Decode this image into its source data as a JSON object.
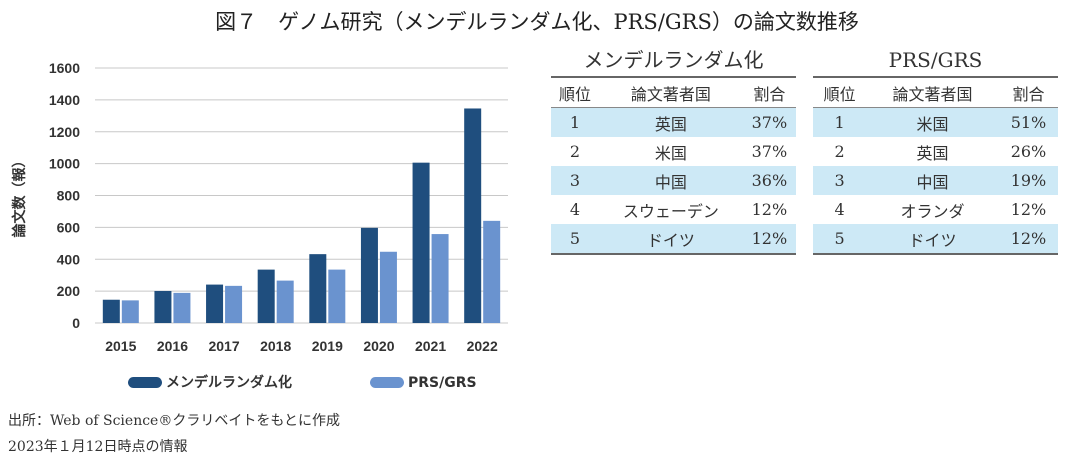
{
  "title": "図７　ゲノム研究（メンデルランダム化、PRS/GRS）の論文数推移",
  "chart_data": {
    "type": "bar",
    "categories": [
      "2015",
      "2016",
      "2017",
      "2018",
      "2019",
      "2020",
      "2021",
      "2022"
    ],
    "series": [
      {
        "name": "メンデルランダム化",
        "color": "#1f4e7e",
        "values": [
          146,
          201,
          241,
          335,
          432,
          597,
          1006,
          1346
        ]
      },
      {
        "name": "PRS/GRS",
        "color": "#6a93cf",
        "values": [
          142,
          189,
          233,
          266,
          335,
          447,
          558,
          641
        ]
      }
    ],
    "ylabel": "論文数（報）",
    "ylim": [
      0,
      1600
    ],
    "yticks": [
      "0",
      "200",
      "400",
      "600",
      "800",
      "1000",
      "1200",
      "1400",
      "1600"
    ],
    "grid": true,
    "legend": "bottom"
  },
  "tables": [
    {
      "title": "メンデルランダム化",
      "headers": [
        "順位",
        "論文著者国",
        "割合"
      ],
      "rows": [
        [
          "1",
          "英国",
          "37%"
        ],
        [
          "2",
          "米国",
          "37%"
        ],
        [
          "3",
          "中国",
          "36%"
        ],
        [
          "4",
          "スウェーデン",
          "12%"
        ],
        [
          "5",
          "ドイツ",
          "12%"
        ]
      ]
    },
    {
      "title": "PRS/GRS",
      "headers": [
        "順位",
        "論文著者国",
        "割合"
      ],
      "rows": [
        [
          "1",
          "米国",
          "51%"
        ],
        [
          "2",
          "英国",
          "26%"
        ],
        [
          "3",
          "中国",
          "19%"
        ],
        [
          "4",
          "オランダ",
          "12%"
        ],
        [
          "5",
          "ドイツ",
          "12%"
        ]
      ]
    }
  ],
  "footer": {
    "source": "出所：Web of Science®クラリベイトをもとに作成",
    "date": "2023年１月12日時点の情報"
  }
}
